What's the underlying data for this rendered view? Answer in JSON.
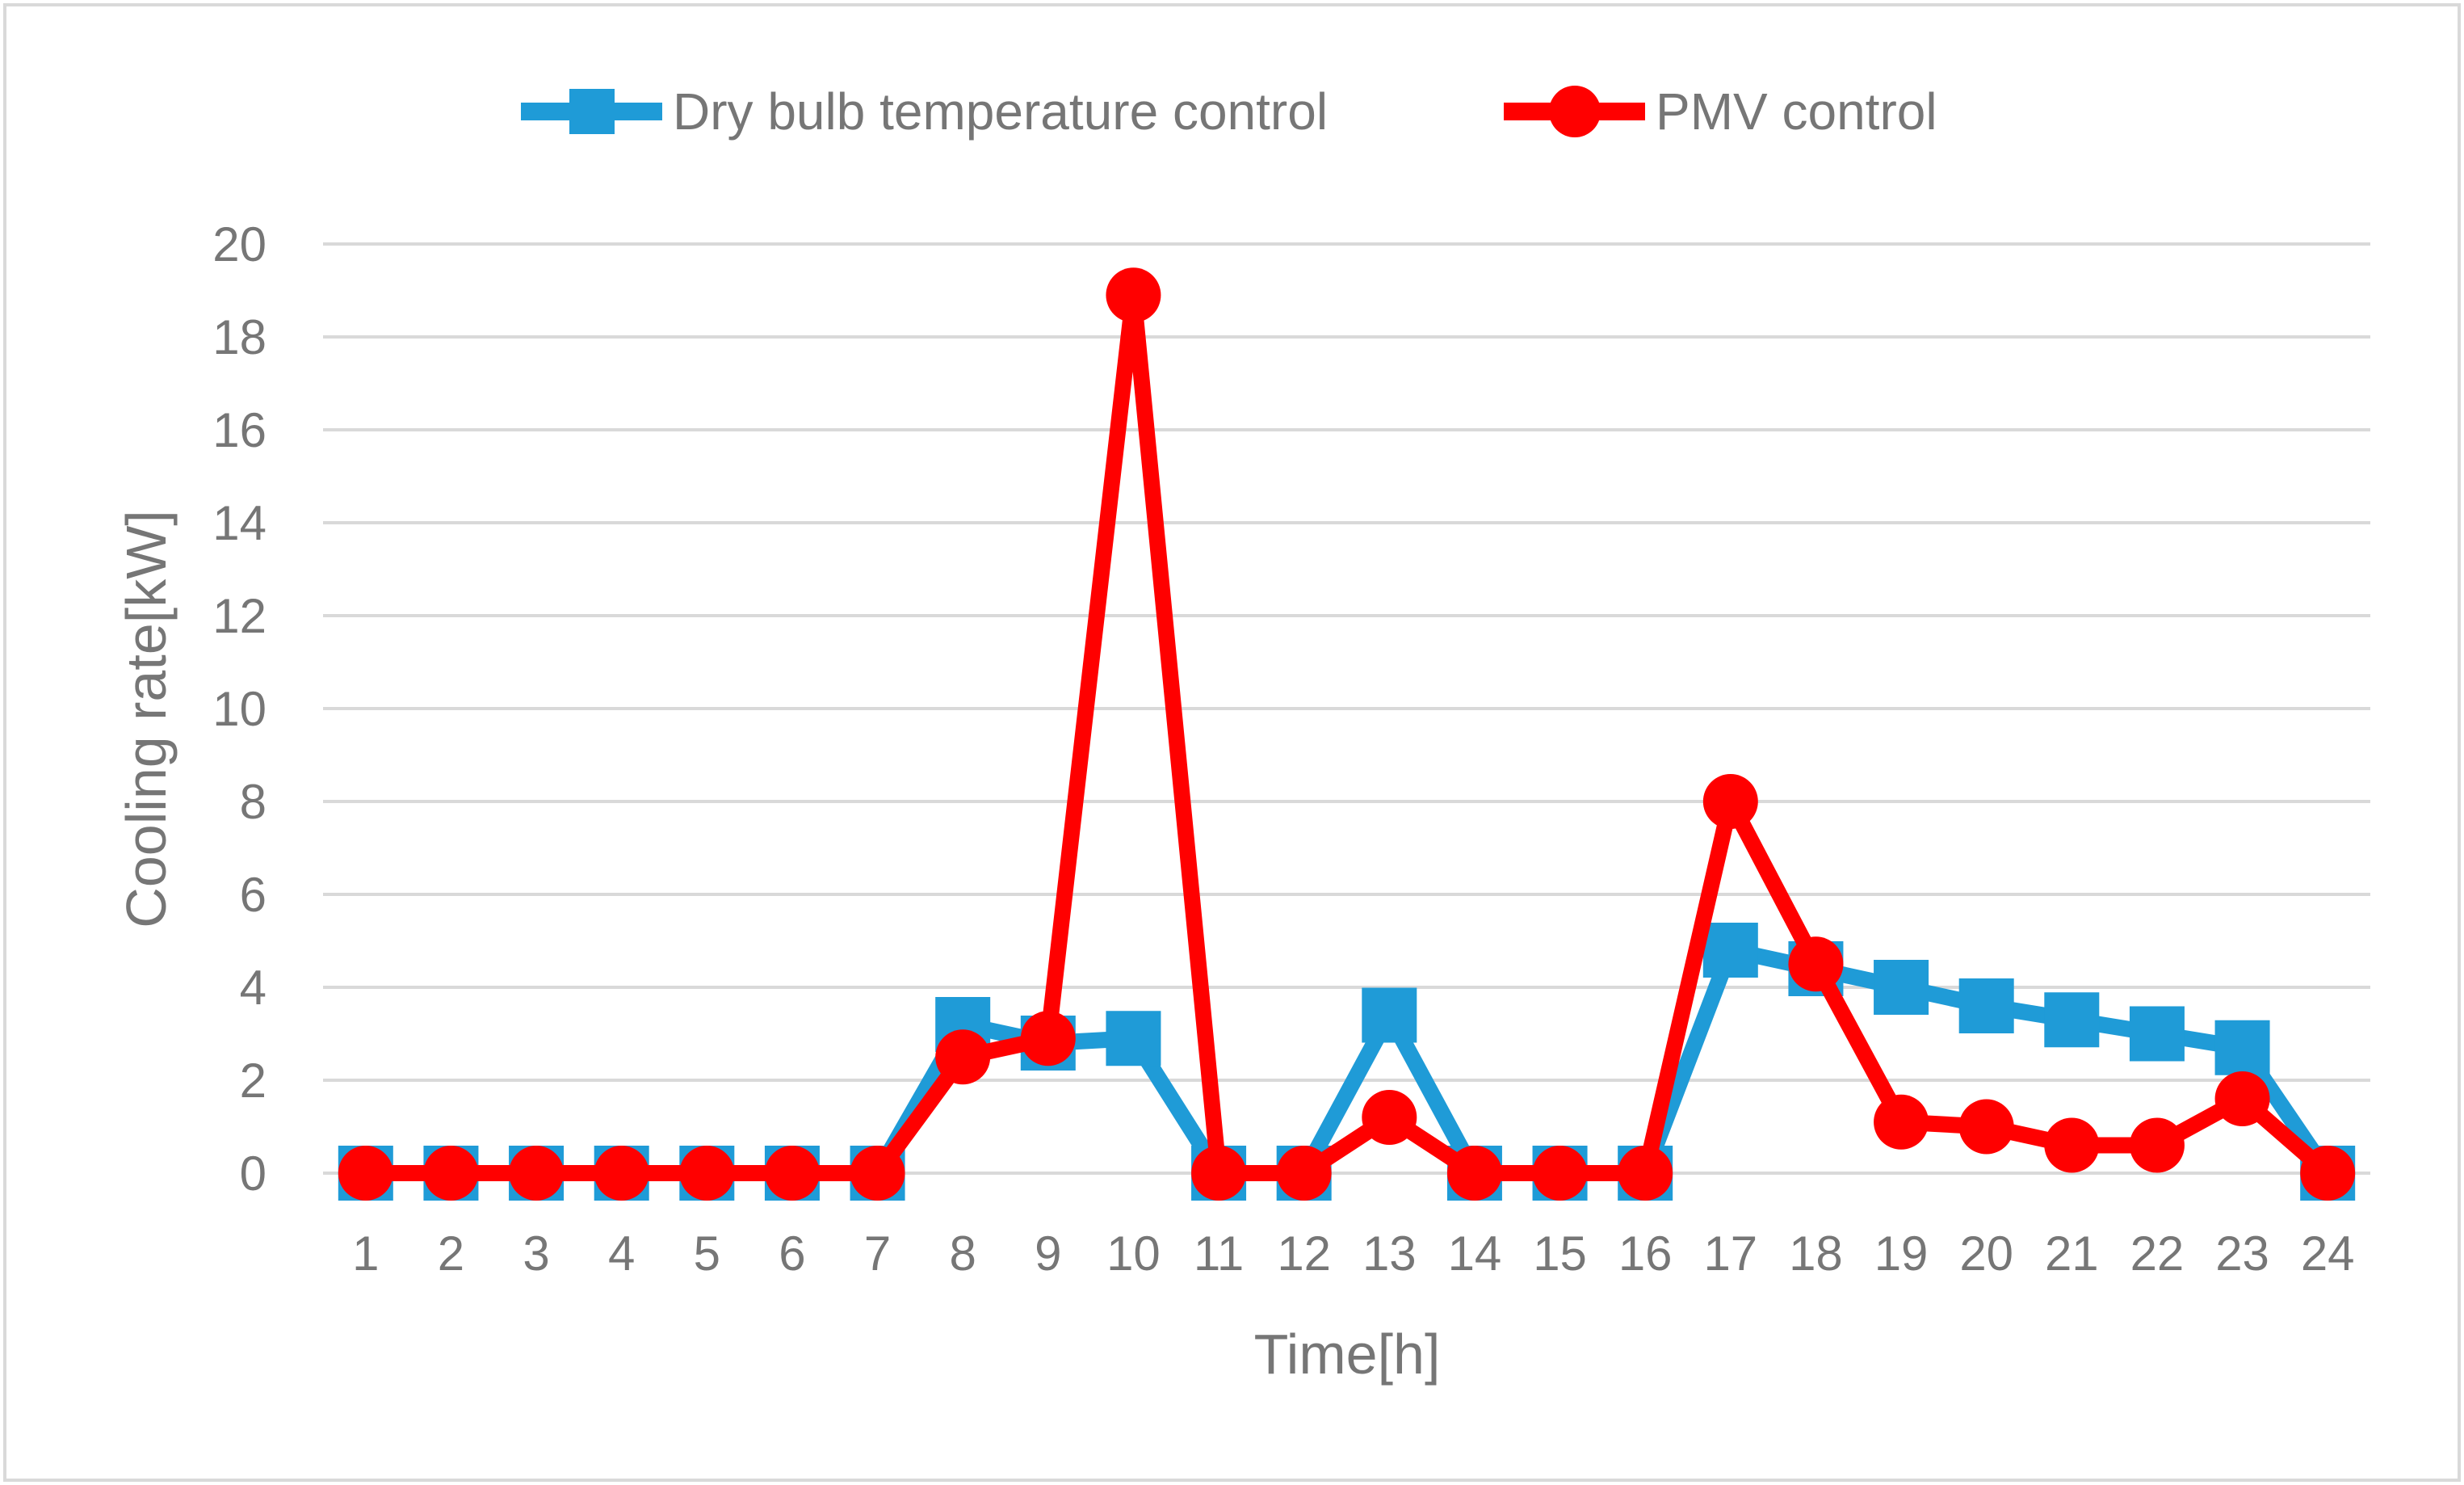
{
  "chart_data": {
    "type": "line",
    "title": "",
    "xlabel": "Time[h]",
    "ylabel": "Cooling rate[kW]",
    "ylim": [
      0,
      20
    ],
    "yticks": [
      "0",
      "2",
      "4",
      "6",
      "8",
      "10",
      "12",
      "14",
      "16",
      "18",
      "20"
    ],
    "categories": [
      "1",
      "2",
      "3",
      "4",
      "5",
      "6",
      "7",
      "8",
      "9",
      "10",
      "11",
      "12",
      "13",
      "14",
      "15",
      "16",
      "17",
      "18",
      "19",
      "20",
      "21",
      "22",
      "23",
      "24"
    ],
    "grid": true,
    "legend_position": "top-center",
    "series": [
      {
        "name": "Dry bulb temperature control",
        "color": "#1f9bd7",
        "marker": "square",
        "values": [
          0,
          0,
          0,
          0,
          0,
          0,
          0,
          3.2,
          2.8,
          2.9,
          0,
          0,
          3.4,
          0,
          0,
          0,
          4.8,
          4.4,
          4.0,
          3.6,
          3.3,
          3.0,
          2.7,
          0
        ]
      },
      {
        "name": "PMV control",
        "color": "#ff0000",
        "marker": "circle",
        "values": [
          0,
          0,
          0,
          0,
          0,
          0,
          0,
          2.5,
          2.9,
          18.9,
          0,
          0,
          1.2,
          0,
          0,
          0,
          8.0,
          4.5,
          1.1,
          1.0,
          0.6,
          0.6,
          1.6,
          0
        ]
      }
    ]
  }
}
